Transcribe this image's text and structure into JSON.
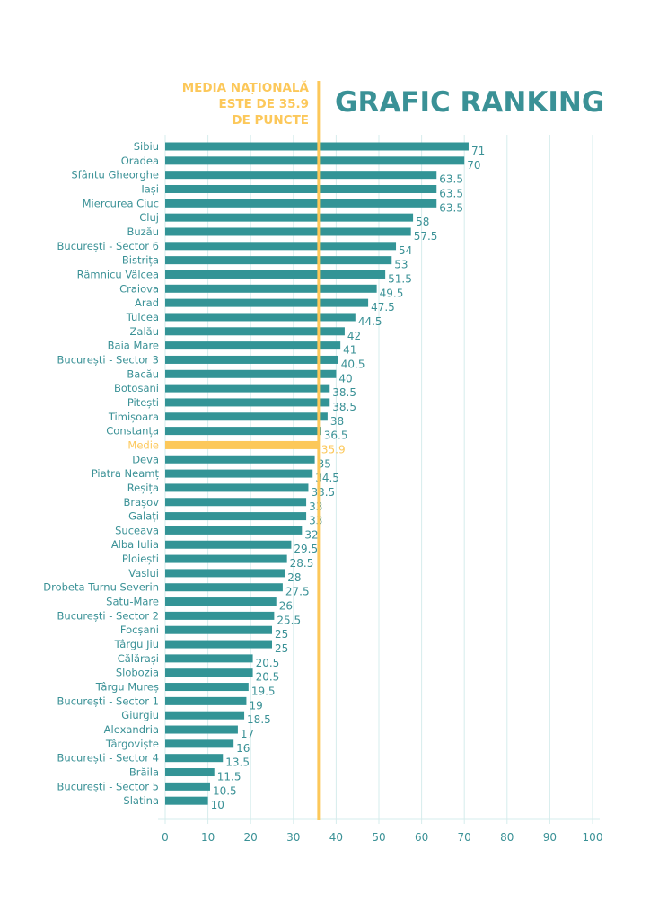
{
  "chart_data": {
    "type": "bar",
    "orientation": "horizontal",
    "title": "GRAFIC RANKING",
    "reference_note": [
      "MEDIA NAȚIONALĂ",
      "ESTE DE 35.9",
      "DE PUNCTE"
    ],
    "reference_value": 35.9,
    "highlight_category": "Medie",
    "xlim": [
      0,
      100
    ],
    "xticks": [
      0,
      10,
      20,
      30,
      40,
      50,
      60,
      70,
      80,
      90,
      100
    ],
    "grid": true,
    "bar_color": "#339496",
    "highlight_color": "#fcc85a",
    "axis_color": "#d6ecec",
    "text_color": "#3a9196",
    "categories": [
      "Sibiu",
      "Oradea",
      "Sfântu Gheorghe",
      "Iași",
      "Miercurea Ciuc",
      "Cluj",
      "Buzău",
      "București - Sector 6",
      "Bistrița",
      "Râmnicu Vâlcea",
      "Craiova",
      "Arad",
      "Tulcea",
      "Zalău",
      "Baia Mare",
      "București - Sector 3",
      "Bacău",
      "Botosani",
      "Pitești",
      "Timișoara",
      "Constanța",
      "Medie",
      "Deva",
      "Piatra Neamț",
      "Reșița",
      "Brașov",
      "Galați",
      "Suceava",
      "Alba Iulia",
      "Ploiești",
      "Vaslui",
      "Drobeta Turnu Severin",
      "Satu-Mare",
      "București - Sector 2",
      "Focșani",
      "Târgu Jiu",
      "Călărași",
      "Slobozia",
      "Târgu Mureș",
      "București - Sector 1",
      "Giurgiu",
      "Alexandria",
      "Târgoviște",
      "București - Sector 4",
      "Brăila",
      "București - Sector 5",
      "Slatina"
    ],
    "values": [
      71,
      70,
      63.5,
      63.5,
      63.5,
      58,
      57.5,
      54,
      53,
      51.5,
      49.5,
      47.5,
      44.5,
      42,
      41,
      40.5,
      40,
      38.5,
      38.5,
      38,
      36.5,
      35.9,
      35,
      34.5,
      33.5,
      33,
      33,
      32,
      29.5,
      28.5,
      28,
      27.5,
      26,
      25.5,
      25,
      25,
      20.5,
      20.5,
      19.5,
      19,
      18.5,
      17,
      16,
      13.5,
      11.5,
      10.5,
      10
    ]
  }
}
